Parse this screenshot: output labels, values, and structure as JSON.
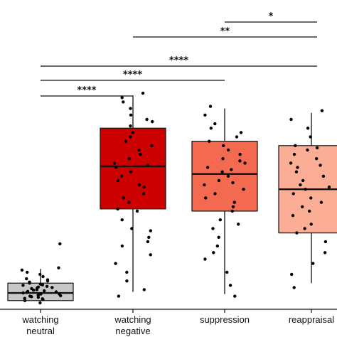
{
  "chart_data": {
    "type": "box",
    "ylim": [
      0,
      100
    ],
    "categories": [
      {
        "lines": [
          "watching",
          "neutral"
        ]
      },
      {
        "lines": [
          "watching",
          "negative"
        ]
      },
      {
        "lines": [
          "suppression"
        ]
      },
      {
        "lines": [
          "reappraisal"
        ]
      }
    ],
    "boxes": [
      {
        "category": "watching neutral",
        "color": "#c8c8c8",
        "whisker_low": 3,
        "q1": 3,
        "median": 6.5,
        "q3": 11,
        "whisker_high": 17.5
      },
      {
        "category": "watching negative",
        "color": "#cc0000",
        "whisker_low": 7,
        "q1": 45,
        "median": 64.5,
        "q3": 82,
        "whisker_high": 97
      },
      {
        "category": "suppression",
        "color": "#f46a50",
        "whisker_low": 6,
        "q1": 44,
        "median": 61,
        "q3": 76,
        "whisker_high": 91
      },
      {
        "category": "reappraisal",
        "color": "#fbae95",
        "whisker_low": 11,
        "q1": 34,
        "median": 54,
        "q3": 74,
        "whisker_high": 89
      }
    ],
    "points": [
      [
        2,
        3.5,
        4,
        5,
        5.5,
        6,
        6.5,
        7,
        7.5,
        8,
        8.5,
        9,
        9.5,
        10,
        10.5,
        11,
        12,
        13,
        14,
        15,
        16,
        17,
        18,
        29,
        3,
        4.5,
        6,
        7.2,
        8.8,
        10.2,
        12.5,
        4.8,
        6.8,
        5.2,
        9.2,
        11.5,
        3.8,
        7.8
      ],
      [
        5,
        8,
        12,
        16,
        20,
        24,
        28,
        32,
        36,
        40,
        44,
        48,
        52,
        56,
        58,
        60,
        62,
        64,
        66,
        68,
        70,
        72,
        74,
        76,
        78,
        80,
        83,
        86,
        88,
        91,
        94,
        96,
        98,
        45,
        50,
        55,
        65,
        85,
        35,
        30
      ],
      [
        5,
        10,
        16,
        22,
        28,
        32,
        36,
        40,
        44,
        48,
        52,
        54,
        56,
        58,
        60,
        62,
        64,
        66,
        68,
        70,
        72,
        74,
        76,
        78,
        80,
        84,
        88,
        92,
        46,
        57,
        63,
        67,
        25,
        38,
        82,
        50
      ],
      [
        9,
        15,
        20,
        25,
        30,
        34,
        38,
        42,
        46,
        50,
        52,
        54,
        56,
        58,
        60,
        62,
        64,
        66,
        68,
        70,
        72,
        74,
        78,
        82,
        86,
        90,
        44,
        48,
        36,
        55,
        65,
        73
      ]
    ],
    "comparisons": [
      {
        "from": 2,
        "to": 3,
        "label": "*"
      },
      {
        "from": 1,
        "to": 3,
        "label": "**"
      },
      {
        "from": 0,
        "to": 3,
        "label": "****"
      },
      {
        "from": 0,
        "to": 2,
        "label": "****"
      },
      {
        "from": 0,
        "to": 1,
        "label": "****"
      }
    ]
  }
}
